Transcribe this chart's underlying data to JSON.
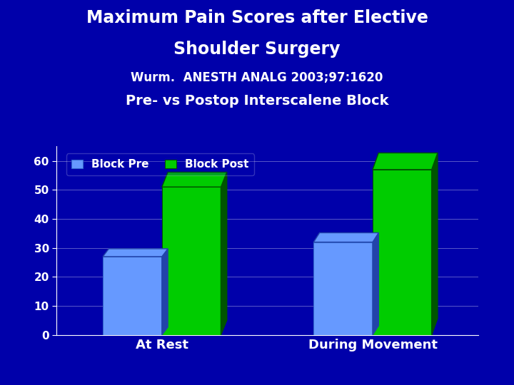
{
  "title_line1": "Maximum Pain Scores after Elective",
  "title_line2": "Shoulder Surgery",
  "title_line3": "Wurm.  ANESTH ANALG 2003;97:1620",
  "title_line4": "Pre- vs Postop Interscalene Block",
  "categories": [
    "At Rest",
    "During Movement"
  ],
  "series": [
    {
      "label": "Block Pre",
      "values": [
        27,
        32
      ],
      "color": "#6699FF",
      "edge_color": "#3366CC",
      "dark_color": "#2244AA"
    },
    {
      "label": "Block Post",
      "values": [
        51,
        57
      ],
      "color": "#00CC00",
      "edge_color": "#005500",
      "dark_color": "#005500"
    }
  ],
  "ylim": [
    0,
    65
  ],
  "yticks": [
    0,
    10,
    20,
    30,
    40,
    50,
    60
  ],
  "background_color": "#0000AA",
  "plot_bg_color": "#0000AA",
  "text_color": "#FFFFFF",
  "grid_color": "#FFFFFF",
  "bar_width": 0.28,
  "legend_font_size": 11,
  "tick_font_size": 11,
  "xlabel_font_size": 13,
  "title1_font_size": 17,
  "title2_font_size": 17,
  "title3_font_size": 12,
  "title4_font_size": 14,
  "shadow_ratio": 0.1
}
